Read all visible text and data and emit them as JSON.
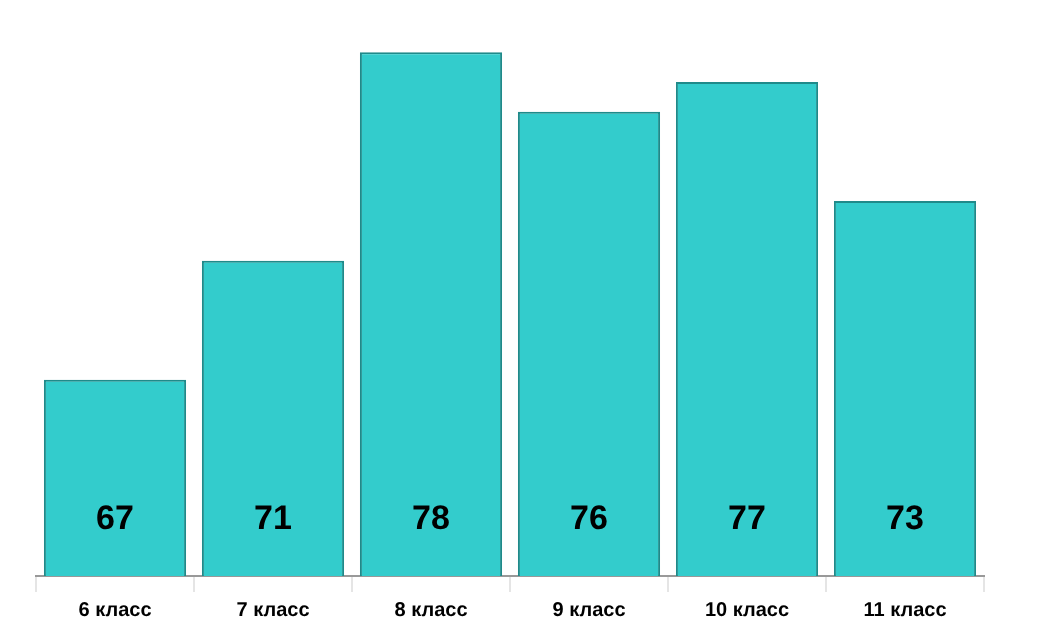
{
  "chart_data": {
    "type": "bar",
    "categories": [
      "6 класс",
      "7 класс",
      "8 класс",
      "9 класс",
      "10 класс",
      "11 класс"
    ],
    "values": [
      67,
      71,
      78,
      76,
      77,
      73
    ],
    "color": "#33cccc",
    "data_labels": true,
    "tick_labels": "x"
  }
}
